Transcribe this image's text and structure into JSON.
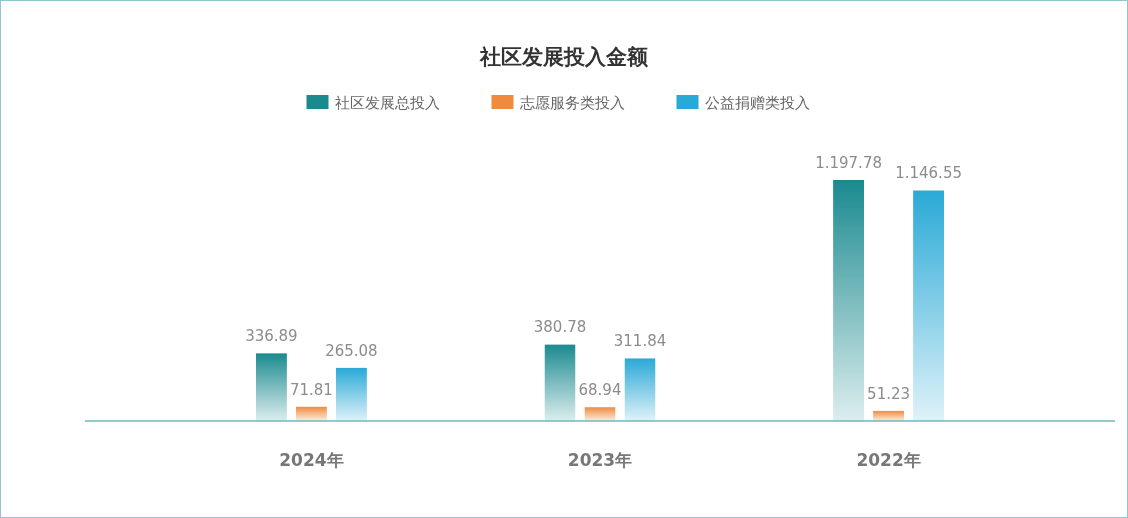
{
  "chart_data": {
    "type": "bar",
    "title": "社区发展投入金额",
    "categories": [
      "2024年",
      "2023年",
      "2022年"
    ],
    "series": [
      {
        "name": "社区发展总投入",
        "color": "#1a8a8f",
        "values": [
          336.89,
          380.78,
          1197.78
        ],
        "value_labels": [
          "336.89",
          "380.78",
          "1.197.78"
        ]
      },
      {
        "name": "志愿服务类投入",
        "color": "#f08a3c",
        "values": [
          71.81,
          68.94,
          51.23
        ],
        "value_labels": [
          "71.81",
          "68.94",
          "51.23"
        ]
      },
      {
        "name": "公益捐赠类投入",
        "color": "#29a9d6",
        "values": [
          265.08,
          311.84,
          1146.55
        ],
        "value_labels": [
          "265.08",
          "311.84",
          "1.146.55"
        ]
      }
    ],
    "legend": "top"
  }
}
